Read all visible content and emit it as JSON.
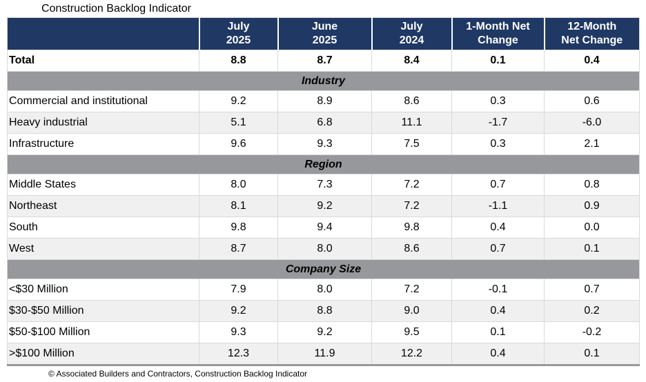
{
  "title": "Construction Backlog Indicator",
  "footer_source": "© Associated Builders and Contractors, Construction Backlog Indicator",
  "colors": {
    "header_bg": "#1F3864",
    "header_text": "#FFFFFF",
    "section_band_bg": "#96989B",
    "stripe_row_bg": "#F0F0F0",
    "grid_line": "#D9D9D9",
    "body_text": "#000000"
  },
  "chart_data": {
    "type": "table",
    "title": "Construction Backlog Indicator",
    "column_headers": [
      {
        "line1": "July",
        "line2": "2025"
      },
      {
        "line1": "June",
        "line2": "2025"
      },
      {
        "line1": "July",
        "line2": "2024"
      },
      {
        "line1": "1-Month Net",
        "line2": "Change"
      },
      {
        "line1": "12-Month",
        "line2": "Net Change"
      }
    ],
    "total_row": {
      "label": "Total",
      "values": [
        "8.8",
        "8.7",
        "8.4",
        "0.1",
        "0.4"
      ]
    },
    "sections": [
      {
        "name": "Industry",
        "rows": [
          {
            "label": "Commercial and institutional",
            "values": [
              "9.2",
              "8.9",
              "8.6",
              "0.3",
              "0.6"
            ]
          },
          {
            "label": "Heavy industrial",
            "values": [
              "5.1",
              "6.8",
              "11.1",
              "-1.7",
              "-6.0"
            ]
          },
          {
            "label": "Infrastructure",
            "values": [
              "9.6",
              "9.3",
              "7.5",
              "0.3",
              "2.1"
            ]
          }
        ]
      },
      {
        "name": "Region",
        "rows": [
          {
            "label": "Middle States",
            "values": [
              "8.0",
              "7.3",
              "7.2",
              "0.7",
              "0.8"
            ]
          },
          {
            "label": "Northeast",
            "values": [
              "8.1",
              "9.2",
              "7.2",
              "-1.1",
              "0.9"
            ]
          },
          {
            "label": "South",
            "values": [
              "9.8",
              "9.4",
              "9.8",
              "0.4",
              "0.0"
            ]
          },
          {
            "label": "West",
            "values": [
              "8.7",
              "8.0",
              "8.6",
              "0.7",
              "0.1"
            ]
          }
        ]
      },
      {
        "name": "Company Size",
        "rows": [
          {
            "label": "<$30 Million",
            "values": [
              "7.9",
              "8.0",
              "7.2",
              "-0.1",
              "0.7"
            ]
          },
          {
            "label": "$30-$50 Million",
            "values": [
              "9.2",
              "8.8",
              "9.0",
              "0.4",
              "0.2"
            ]
          },
          {
            "label": "$50-$100 Million",
            "values": [
              "9.3",
              "9.2",
              "9.5",
              "0.1",
              "-0.2"
            ]
          },
          {
            "label": ">$100 Million",
            "values": [
              "12.3",
              "11.9",
              "12.2",
              "0.4",
              "0.1"
            ]
          }
        ]
      }
    ]
  }
}
